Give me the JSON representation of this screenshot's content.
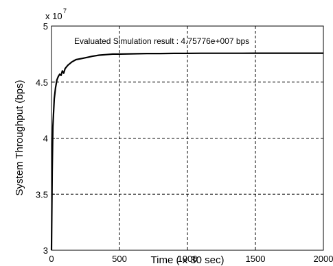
{
  "chart_data": {
    "type": "line",
    "title": "",
    "xlabel": "Time ( x 30 sec)",
    "ylabel": "System Throughput (bps)",
    "y_scale_label": "x 10",
    "y_scale_exponent": "7",
    "xlim": [
      0,
      2000
    ],
    "ylim": [
      3,
      5
    ],
    "x_ticks": [
      "0",
      "500",
      "1000",
      "1500",
      "2000"
    ],
    "y_ticks": [
      "3",
      "3.5",
      "4",
      "4.5",
      "5"
    ],
    "grid": true,
    "annotation": "Evaluated Simulation result : 4.75776e+007 bps",
    "series": [
      {
        "x": [
          0,
          5,
          10,
          20,
          30,
          40,
          50,
          60,
          70,
          80,
          90,
          100,
          120,
          150,
          180,
          220,
          260,
          300,
          350,
          400,
          450,
          500,
          600,
          700,
          800,
          900,
          1000,
          1100,
          1200,
          1300,
          1400,
          1500,
          1600,
          1700,
          1800,
          1900,
          2000
        ],
        "y": [
          3.0,
          3.7,
          4.1,
          4.35,
          4.45,
          4.52,
          4.55,
          4.57,
          4.56,
          4.6,
          4.58,
          4.62,
          4.65,
          4.68,
          4.7,
          4.71,
          4.72,
          4.73,
          4.74,
          4.745,
          4.75,
          4.75,
          4.752,
          4.755,
          4.755,
          4.756,
          4.756,
          4.757,
          4.757,
          4.757,
          4.757,
          4.758,
          4.758,
          4.758,
          4.758,
          4.758,
          4.758
        ]
      }
    ]
  }
}
